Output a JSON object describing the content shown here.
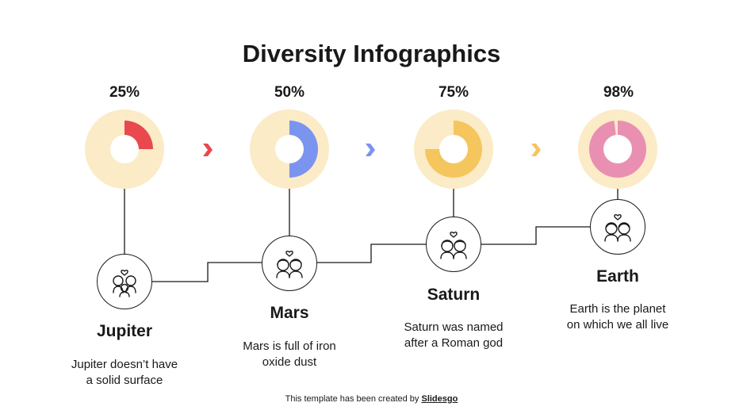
{
  "title": "Diversity Infographics",
  "items": [
    {
      "name": "Jupiter",
      "percent_label": "25%",
      "percent": 25,
      "color": "#E8484E",
      "desc_line1": "Jupiter doesn’t have",
      "desc_line2": "a solid surface",
      "icon": "family-icon"
    },
    {
      "name": "Mars",
      "percent_label": "50%",
      "percent": 50,
      "color": "#7A94F0",
      "desc_line1": "Mars is full of iron",
      "desc_line2": "oxide dust",
      "icon": "couple-icon"
    },
    {
      "name": "Saturn",
      "percent_label": "75%",
      "percent": 75,
      "color": "#F5C55E",
      "desc_line1": "Saturn was named",
      "desc_line2": "after a Roman god",
      "icon": "couple-icon"
    },
    {
      "name": "Earth",
      "percent_label": "98%",
      "percent": 98,
      "color": "#E98FB1",
      "desc_line1": "Earth is the planet",
      "desc_line2": "on which we all live",
      "icon": "couple-icon"
    }
  ],
  "colors": {
    "ring_background": "#FBEBC6",
    "line": "#191919"
  },
  "footer": {
    "prefix": "This template has been created by ",
    "brand": "Slidesgo"
  }
}
